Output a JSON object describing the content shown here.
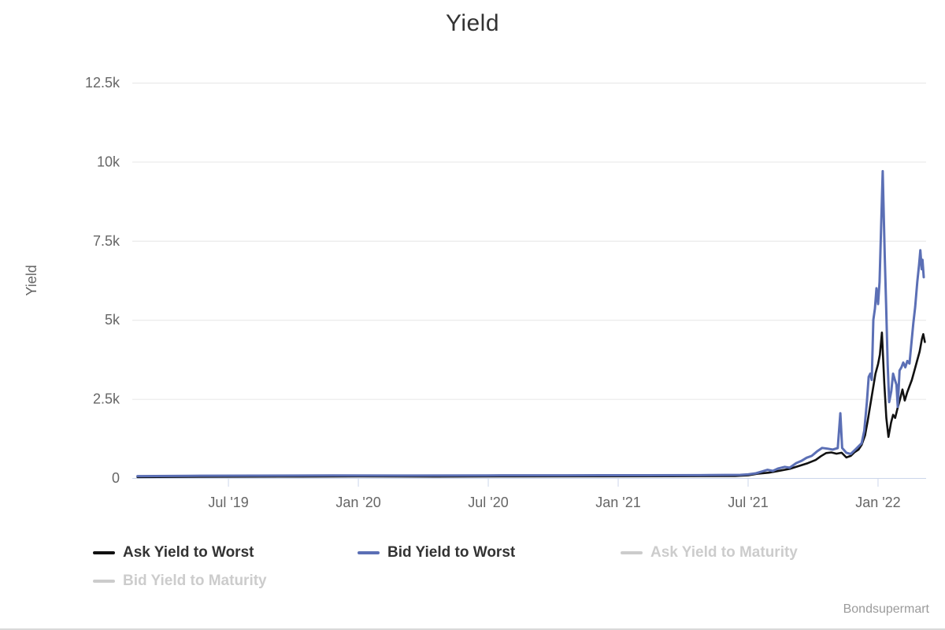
{
  "title": "Yield",
  "credit": "Bondsupermart",
  "colors": {
    "ask_ytw": "#111111",
    "bid_ytw": "#5b6fb5",
    "disabled": "#cccccc",
    "grid": "#e6e6e6",
    "axis_line": "#ccd6eb",
    "tick_label": "#666666",
    "axis_title": "#666666",
    "legend_text": "#333333",
    "credit_color": "#9b9b9b"
  },
  "legend": {
    "items": [
      {
        "label": "Ask Yield to Worst",
        "color": "#111111",
        "enabled": true
      },
      {
        "label": "Bid Yield to Worst",
        "color": "#5b6fb5",
        "enabled": true
      },
      {
        "label": "Ask Yield to Maturity",
        "color": "#cccccc",
        "enabled": false
      },
      {
        "label": "Bid Yield to Maturity",
        "color": "#cccccc",
        "enabled": false
      }
    ]
  },
  "chart_data": {
    "type": "line",
    "title": "Yield",
    "ylabel": "Yield",
    "xlabel": "",
    "grid": true,
    "legend_position": "bottom",
    "ylim": [
      0,
      12500
    ],
    "xlim": [
      2019.13,
      2022.185
    ],
    "yticks": [
      {
        "value": 0,
        "label": "0"
      },
      {
        "value": 2500,
        "label": "2.5k"
      },
      {
        "value": 5000,
        "label": "5k"
      },
      {
        "value": 7500,
        "label": "7.5k"
      },
      {
        "value": 10000,
        "label": "10k"
      },
      {
        "value": 12500,
        "label": "12.5k"
      }
    ],
    "xticks": [
      {
        "value": 2019.5,
        "label": "Jul '19"
      },
      {
        "value": 2020.0,
        "label": "Jan '20"
      },
      {
        "value": 2020.5,
        "label": "Jul '20"
      },
      {
        "value": 2021.0,
        "label": "Jan '21"
      },
      {
        "value": 2021.5,
        "label": "Jul '21"
      },
      {
        "value": 2022.0,
        "label": "Jan '22"
      }
    ],
    "series": [
      {
        "name": "Ask Yield to Worst",
        "color": "#111111",
        "visible": true,
        "points": [
          [
            2019.15,
            30
          ],
          [
            2019.4,
            40
          ],
          [
            2019.7,
            45
          ],
          [
            2020.0,
            50
          ],
          [
            2020.3,
            46
          ],
          [
            2020.6,
            52
          ],
          [
            2020.9,
            55
          ],
          [
            2021.2,
            58
          ],
          [
            2021.45,
            65
          ],
          [
            2021.5,
            85
          ],
          [
            2021.54,
            140
          ],
          [
            2021.58,
            170
          ],
          [
            2021.62,
            230
          ],
          [
            2021.66,
            290
          ],
          [
            2021.7,
            390
          ],
          [
            2021.73,
            470
          ],
          [
            2021.76,
            570
          ],
          [
            2021.78,
            690
          ],
          [
            2021.8,
            790
          ],
          [
            2021.82,
            810
          ],
          [
            2021.84,
            770
          ],
          [
            2021.86,
            800
          ],
          [
            2021.878,
            650
          ],
          [
            2021.895,
            700
          ],
          [
            2021.91,
            820
          ],
          [
            2021.925,
            900
          ],
          [
            2021.937,
            1050
          ],
          [
            2021.95,
            1350
          ],
          [
            2021.96,
            1800
          ],
          [
            2021.97,
            2300
          ],
          [
            2021.98,
            2800
          ],
          [
            2021.99,
            3300
          ],
          [
            2022.0,
            3600
          ],
          [
            2022.007,
            3900
          ],
          [
            2022.015,
            4600
          ],
          [
            2022.024,
            3000
          ],
          [
            2022.032,
            1900
          ],
          [
            2022.04,
            1300
          ],
          [
            2022.05,
            1750
          ],
          [
            2022.058,
            2000
          ],
          [
            2022.066,
            1900
          ],
          [
            2022.075,
            2200
          ],
          [
            2022.085,
            2500
          ],
          [
            2022.094,
            2800
          ],
          [
            2022.103,
            2450
          ],
          [
            2022.112,
            2700
          ],
          [
            2022.121,
            2900
          ],
          [
            2022.13,
            3100
          ],
          [
            2022.14,
            3400
          ],
          [
            2022.15,
            3700
          ],
          [
            2022.16,
            4000
          ],
          [
            2022.169,
            4400
          ],
          [
            2022.174,
            4550
          ],
          [
            2022.18,
            4300
          ]
        ]
      },
      {
        "name": "Bid Yield to Worst",
        "color": "#5b6fb5",
        "visible": true,
        "points": [
          [
            2019.15,
            60
          ],
          [
            2019.35,
            70
          ],
          [
            2019.6,
            75
          ],
          [
            2019.9,
            80
          ],
          [
            2020.2,
            78
          ],
          [
            2020.5,
            82
          ],
          [
            2020.8,
            85
          ],
          [
            2021.1,
            88
          ],
          [
            2021.35,
            92
          ],
          [
            2021.47,
            100
          ],
          [
            2021.5,
            115
          ],
          [
            2021.53,
            150
          ],
          [
            2021.555,
            210
          ],
          [
            2021.575,
            260
          ],
          [
            2021.595,
            225
          ],
          [
            2021.615,
            300
          ],
          [
            2021.64,
            350
          ],
          [
            2021.66,
            325
          ],
          [
            2021.685,
            470
          ],
          [
            2021.705,
            540
          ],
          [
            2021.725,
            640
          ],
          [
            2021.745,
            700
          ],
          [
            2021.765,
            840
          ],
          [
            2021.785,
            950
          ],
          [
            2021.805,
            930
          ],
          [
            2021.825,
            900
          ],
          [
            2021.845,
            945
          ],
          [
            2021.855,
            2050
          ],
          [
            2021.862,
            950
          ],
          [
            2021.878,
            800
          ],
          [
            2021.895,
            760
          ],
          [
            2021.91,
            880
          ],
          [
            2021.925,
            1000
          ],
          [
            2021.937,
            1100
          ],
          [
            2021.947,
            1500
          ],
          [
            2021.957,
            2400
          ],
          [
            2021.964,
            3200
          ],
          [
            2021.97,
            3300
          ],
          [
            2021.976,
            3100
          ],
          [
            2021.982,
            5000
          ],
          [
            2021.988,
            5350
          ],
          [
            2021.994,
            6000
          ],
          [
            2022.0,
            5500
          ],
          [
            2022.006,
            6200
          ],
          [
            2022.018,
            9700
          ],
          [
            2022.026,
            7000
          ],
          [
            2022.031,
            5500
          ],
          [
            2022.037,
            3600
          ],
          [
            2022.043,
            2400
          ],
          [
            2022.051,
            2750
          ],
          [
            2022.058,
            3300
          ],
          [
            2022.065,
            3100
          ],
          [
            2022.071,
            2950
          ],
          [
            2022.076,
            2250
          ],
          [
            2022.083,
            3400
          ],
          [
            2022.09,
            3500
          ],
          [
            2022.097,
            3650
          ],
          [
            2022.105,
            3500
          ],
          [
            2022.113,
            3700
          ],
          [
            2022.121,
            3620
          ],
          [
            2022.129,
            4300
          ],
          [
            2022.136,
            4900
          ],
          [
            2022.143,
            5400
          ],
          [
            2022.151,
            6200
          ],
          [
            2022.158,
            6750
          ],
          [
            2022.163,
            7200
          ],
          [
            2022.168,
            6600
          ],
          [
            2022.171,
            6900
          ],
          [
            2022.176,
            6350
          ]
        ]
      },
      {
        "name": "Ask Yield to Maturity",
        "color": "#cccccc",
        "visible": false,
        "points": []
      },
      {
        "name": "Bid Yield to Maturity",
        "color": "#cccccc",
        "visible": false,
        "points": []
      }
    ]
  }
}
